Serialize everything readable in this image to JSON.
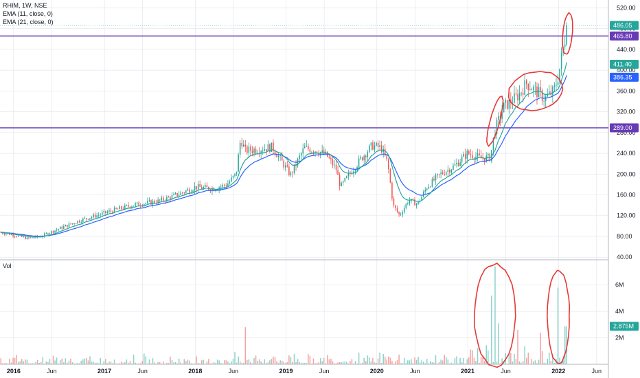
{
  "legend": {
    "symbol_line": "RHIM, 1W, NSE",
    "ema_short": "EMA (11, close, 0)",
    "ema_long": "EMA (21, close, 0)"
  },
  "volume_pane": {
    "label": "Vol"
  },
  "colors": {
    "up": "#26a69a",
    "down": "#ef5350",
    "ema_short": "#26a69a",
    "ema_long": "#2962ff",
    "hline": "#673ab7",
    "annotation": "#e53935",
    "vol_up": "#8fd1c9",
    "vol_down": "#f4a4a2",
    "grid": "#e0e3eb"
  },
  "price_badges": [
    {
      "id": "last-price",
      "label": "486.05",
      "value": 486.05,
      "color": "#26a69a"
    },
    {
      "id": "hline-upper",
      "label": "465.80",
      "value": 465.8,
      "color": "#673ab7"
    },
    {
      "id": "ema-short-value",
      "label": "411.40",
      "value": 411.4,
      "color": "#26a69a"
    },
    {
      "id": "ema-long-value",
      "label": "386.35",
      "value": 386.35,
      "color": "#2962ff"
    },
    {
      "id": "hline-lower",
      "label": "289.00",
      "value": 289.0,
      "color": "#673ab7"
    }
  ],
  "volume_badge": {
    "label": "2.875M",
    "value": 2.875,
    "color": "#26a69a"
  },
  "chart_data": {
    "type": "candlestick",
    "interval": "1W",
    "price_axis": {
      "ticks": [
        40,
        80,
        120,
        160,
        200,
        240,
        280,
        320,
        360,
        400,
        440,
        480,
        520
      ],
      "tick_labels": [
        "40.00",
        "80.00",
        "120.00",
        "160.00",
        "200.00",
        "240.00",
        "280.00",
        "320.00",
        "360.00",
        "400.00",
        "440.00",
        "480.00",
        "520.00"
      ],
      "ylim": [
        35,
        535
      ]
    },
    "volume_axis": {
      "ticks": [
        2,
        4,
        6
      ],
      "tick_labels": [
        "2M",
        "4M",
        "6M"
      ],
      "ylim": [
        0,
        7.8
      ]
    },
    "time_axis": {
      "range": [
        2015.85,
        2022.55
      ],
      "ticks": [
        {
          "label": "2016",
          "t": 2016.0,
          "year": true
        },
        {
          "label": "Jun",
          "t": 2016.42,
          "year": false
        },
        {
          "label": "2017",
          "t": 2017.0,
          "year": true
        },
        {
          "label": "Jun",
          "t": 2017.42,
          "year": false
        },
        {
          "label": "2018",
          "t": 2018.0,
          "year": true
        },
        {
          "label": "Jun",
          "t": 2018.42,
          "year": false
        },
        {
          "label": "2019",
          "t": 2019.0,
          "year": true
        },
        {
          "label": "Jun",
          "t": 2019.42,
          "year": false
        },
        {
          "label": "2020",
          "t": 2020.0,
          "year": true
        },
        {
          "label": "Jun",
          "t": 2020.42,
          "year": false
        },
        {
          "label": "2021",
          "t": 2021.0,
          "year": true
        },
        {
          "label": "Jun",
          "t": 2021.42,
          "year": false
        },
        {
          "label": "2022",
          "t": 2022.0,
          "year": true
        },
        {
          "label": "Jun",
          "t": 2022.42,
          "year": false
        }
      ]
    },
    "horizontal_lines": [
      465.8,
      289.0
    ],
    "price_path": [
      [
        2015.85,
        88
      ],
      [
        2016.0,
        83
      ],
      [
        2016.15,
        76
      ],
      [
        2016.3,
        80
      ],
      [
        2016.5,
        95
      ],
      [
        2016.75,
        112
      ],
      [
        2017.0,
        125
      ],
      [
        2017.3,
        140
      ],
      [
        2017.6,
        148
      ],
      [
        2017.8,
        160
      ],
      [
        2018.0,
        175
      ],
      [
        2018.2,
        172
      ],
      [
        2018.35,
        180
      ],
      [
        2018.45,
        200
      ],
      [
        2018.5,
        268
      ],
      [
        2018.55,
        245
      ],
      [
        2018.7,
        248
      ],
      [
        2018.85,
        252
      ],
      [
        2018.95,
        225
      ],
      [
        2019.05,
        198
      ],
      [
        2019.2,
        250
      ],
      [
        2019.35,
        245
      ],
      [
        2019.45,
        235
      ],
      [
        2019.55,
        210
      ],
      [
        2019.6,
        175
      ],
      [
        2019.7,
        200
      ],
      [
        2019.85,
        235
      ],
      [
        2019.95,
        255
      ],
      [
        2020.05,
        250
      ],
      [
        2020.12,
        220
      ],
      [
        2020.18,
        140
      ],
      [
        2020.25,
        120
      ],
      [
        2020.35,
        150
      ],
      [
        2020.45,
        142
      ],
      [
        2020.55,
        175
      ],
      [
        2020.7,
        200
      ],
      [
        2020.85,
        215
      ],
      [
        2021.0,
        240
      ],
      [
        2021.15,
        230
      ],
      [
        2021.25,
        232
      ],
      [
        2021.3,
        285
      ],
      [
        2021.4,
        330
      ],
      [
        2021.55,
        350
      ],
      [
        2021.65,
        375
      ],
      [
        2021.75,
        360
      ],
      [
        2021.85,
        345
      ],
      [
        2021.95,
        360
      ],
      [
        2022.0,
        390
      ],
      [
        2022.05,
        440
      ],
      [
        2022.1,
        486.05
      ]
    ],
    "volume_spikes": [
      {
        "t": 2018.56,
        "v": 2.8
      },
      {
        "t": 2021.27,
        "v": 5.2
      },
      {
        "t": 2021.3,
        "v": 7.4
      },
      {
        "t": 2021.35,
        "v": 3.1
      },
      {
        "t": 2021.55,
        "v": 2.6
      },
      {
        "t": 2021.8,
        "v": 2.4
      },
      {
        "t": 2022.0,
        "v": 5.8
      },
      {
        "t": 2022.08,
        "v": 2.875
      },
      {
        "t": 2022.1,
        "v": 2.875
      }
    ]
  }
}
